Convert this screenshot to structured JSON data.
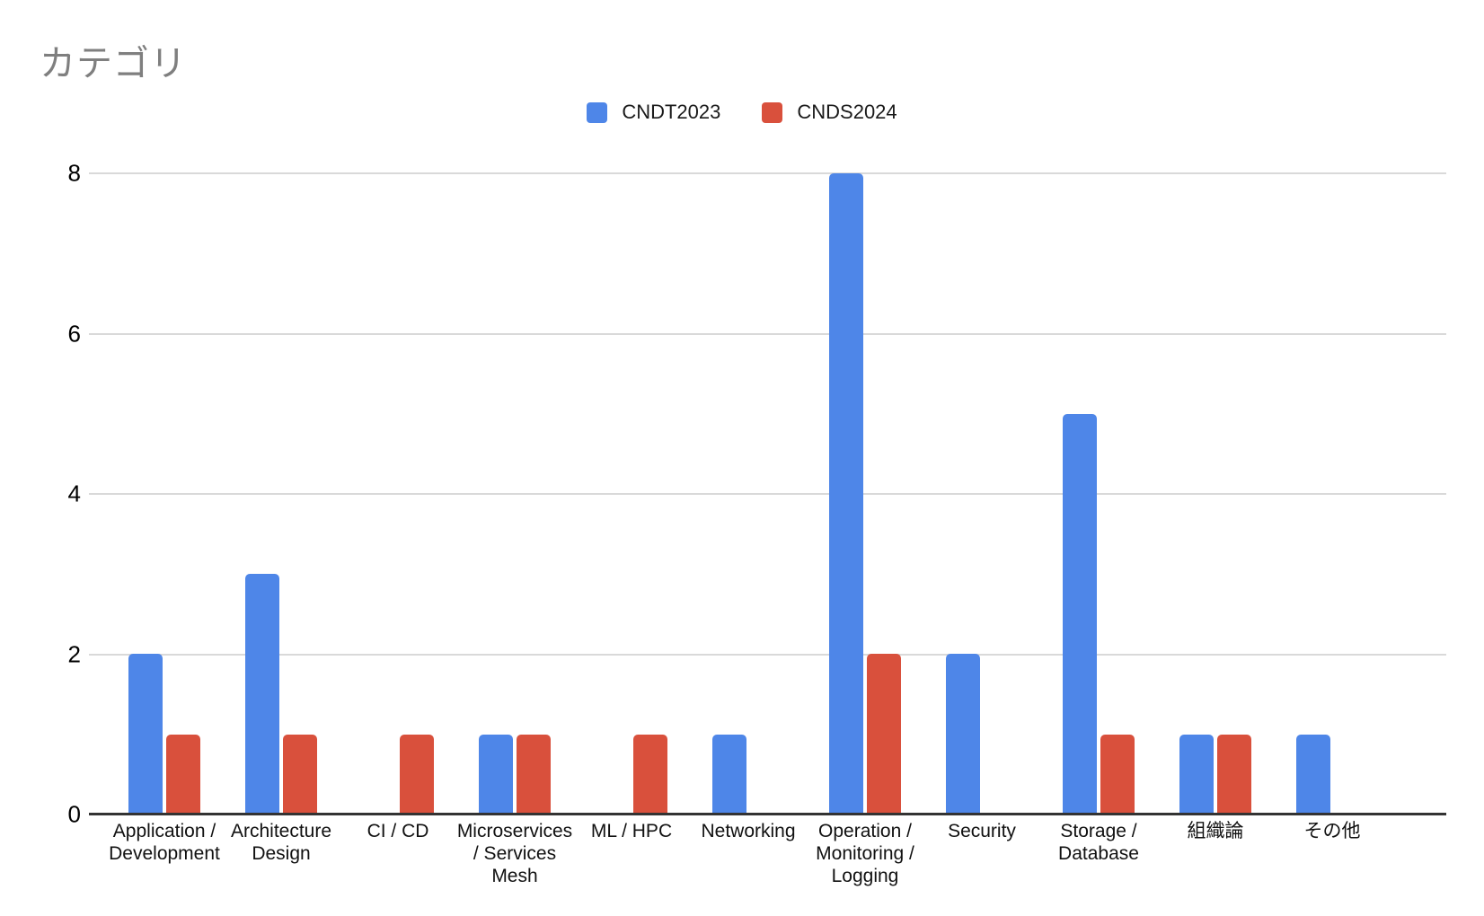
{
  "title": "カテゴリ",
  "colors": {
    "series_blue": "#4e86e8",
    "series_red": "#d9503c",
    "gridline": "#d9d9d9",
    "axis_line": "#333333",
    "title_text": "#7f7f7f",
    "label_text": "#111111"
  },
  "chart_data": {
    "type": "bar",
    "title": "カテゴリ",
    "xlabel": "",
    "ylabel": "",
    "ylim": [
      0,
      8
    ],
    "yticks": [
      0,
      2,
      4,
      6,
      8
    ],
    "grid": true,
    "legend_position": "top",
    "categories": [
      "Application /\nDevelopment",
      "Architecture\nDesign",
      "CI / CD",
      "Microservices\n/ Services\nMesh",
      "ML / HPC",
      "Networking",
      "Operation /\nMonitoring /\nLogging",
      "Security",
      "Storage /\nDatabase",
      "組織論",
      "その他"
    ],
    "series": [
      {
        "name": "CNDT2023",
        "color": "#4e86e8",
        "values": [
          2,
          3,
          0,
          1,
          0,
          1,
          8,
          2,
          5,
          1,
          1
        ]
      },
      {
        "name": "CNDS2024",
        "color": "#d9503c",
        "values": [
          1,
          1,
          1,
          1,
          1,
          0,
          2,
          0,
          1,
          1,
          0
        ]
      }
    ]
  }
}
